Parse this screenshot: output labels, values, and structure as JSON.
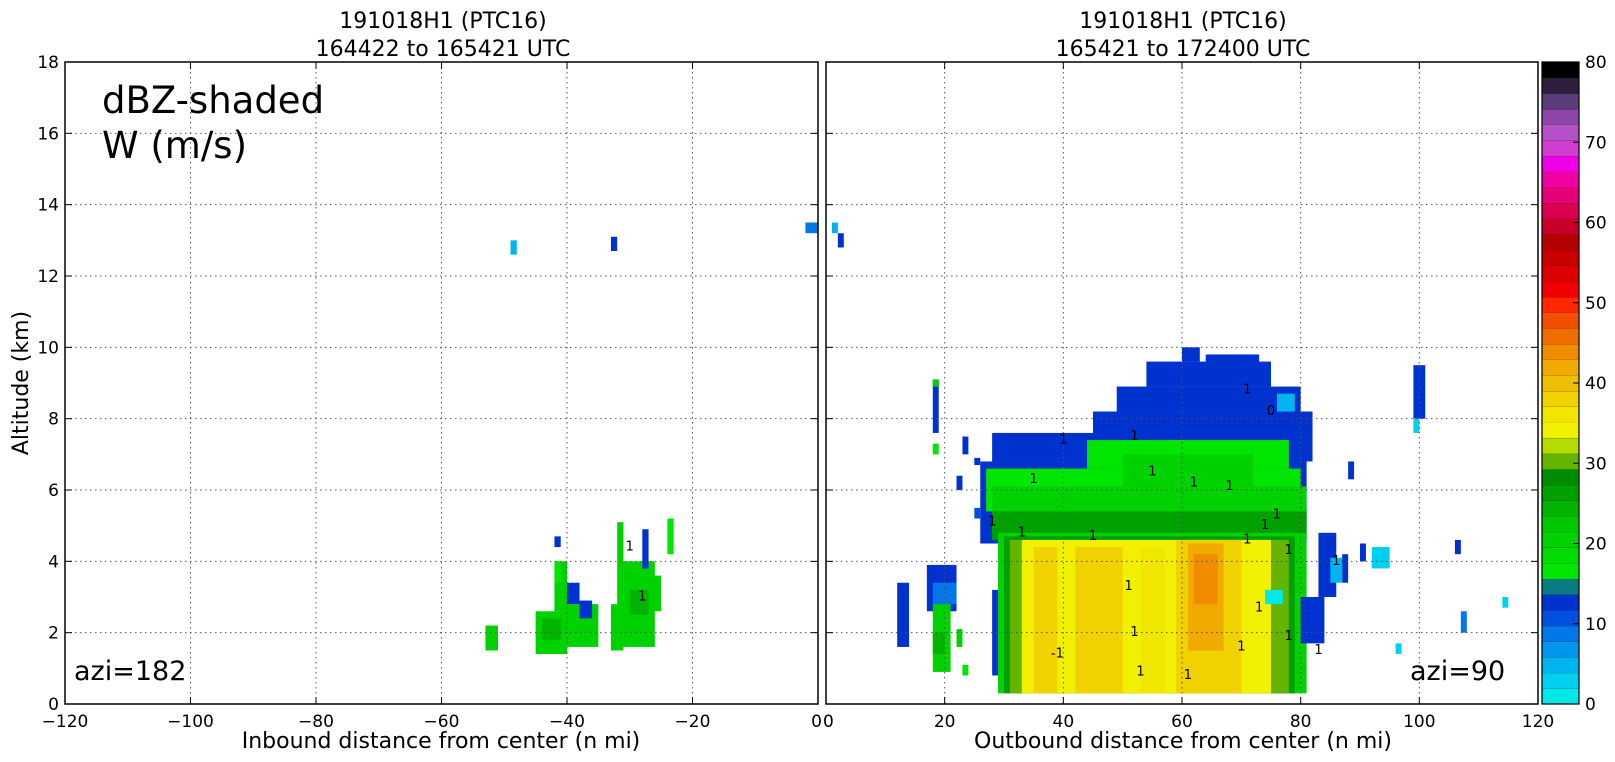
{
  "annotation": {
    "line1": "dBZ-shaded",
    "line2": "W (m/s)"
  },
  "colorbar": {
    "ticks": [
      "0",
      "10",
      "20",
      "30",
      "40",
      "50",
      "60",
      "70",
      "80"
    ],
    "colors": [
      "#00e8e8",
      "#00d0f0",
      "#00b4f0",
      "#0096ec",
      "#0078e8",
      "#0050e0",
      "#0032d0",
      "#0a7c82",
      "#00e600",
      "#00dc00",
      "#00d200",
      "#00c800",
      "#00b400",
      "#00a000",
      "#008c00",
      "#64b400",
      "#b4dc00",
      "#f0f000",
      "#f0e600",
      "#f0d200",
      "#f0be00",
      "#f0aa00",
      "#f08c00",
      "#f06e00",
      "#f05000",
      "#ff2800",
      "#f00000",
      "#dc0000",
      "#c80000",
      "#b40000",
      "#c80028",
      "#dc0050",
      "#e60078",
      "#f000a0",
      "#f000e6",
      "#d23cd2",
      "#b450c8",
      "#8c46aa",
      "#5a3c78",
      "#2d1e3c",
      "#000000"
    ]
  },
  "chart_data": [
    {
      "type": "heatmap",
      "title_line1": "191018H1 (PTC16)",
      "title_line2": "164422 to 165421 UTC",
      "xlabel": "Inbound distance from center (n mi)",
      "ylabel": "Altitude (km)",
      "xlim": [
        -120,
        0
      ],
      "ylim": [
        0,
        18
      ],
      "xticks": [
        -120,
        -100,
        -80,
        -60,
        -40,
        -20,
        0
      ],
      "yticks": [
        0,
        2,
        4,
        6,
        8,
        10,
        12,
        14,
        16,
        18
      ],
      "grid": true,
      "azimuth_label": "azi=182",
      "contour_labels": [
        {
          "text": "1",
          "x": -28,
          "y": 2.9
        },
        {
          "text": "1",
          "x": -30,
          "y": 4.3
        }
      ],
      "cells": [
        {
          "x0": -53,
          "x1": -51,
          "y0": 1.5,
          "y1": 2.2,
          "dbz": 21
        },
        {
          "x0": -45,
          "x1": -40,
          "y0": 1.4,
          "y1": 2.6,
          "dbz": 21
        },
        {
          "x0": -44,
          "x1": -40,
          "y0": 1.8,
          "y1": 2.4,
          "dbz": 25
        },
        {
          "x0": -41,
          "x1": -35,
          "y0": 1.6,
          "y1": 2.8,
          "dbz": 21
        },
        {
          "x0": -42,
          "x1": -40,
          "y0": 2.6,
          "y1": 4.0,
          "dbz": 21
        },
        {
          "x0": -42,
          "x1": -41,
          "y0": 3.4,
          "y1": 4.0,
          "dbz": 17
        },
        {
          "x0": -40,
          "x1": -38,
          "y0": 2.8,
          "y1": 3.4,
          "dbz": 12
        },
        {
          "x0": -38,
          "x1": -36,
          "y0": 2.4,
          "y1": 2.9,
          "dbz": 12
        },
        {
          "x0": -42,
          "x1": -41,
          "y0": 4.4,
          "y1": 4.7,
          "dbz": 13
        },
        {
          "x0": -33,
          "x1": -31,
          "y0": 1.5,
          "y1": 2.8,
          "dbz": 21
        },
        {
          "x0": -32,
          "x1": -26,
          "y0": 1.6,
          "y1": 4.0,
          "dbz": 21
        },
        {
          "x0": -32,
          "x1": -31,
          "y0": 4.0,
          "y1": 5.1,
          "dbz": 21
        },
        {
          "x0": -30,
          "x1": -27,
          "y0": 2.5,
          "y1": 3.2,
          "dbz": 25
        },
        {
          "x0": -27,
          "x1": -25,
          "y0": 2.6,
          "y1": 3.6,
          "dbz": 21
        },
        {
          "x0": -28,
          "x1": -27,
          "y0": 3.8,
          "y1": 4.9,
          "dbz": 12
        },
        {
          "x0": -24,
          "x1": -23,
          "y0": 4.2,
          "y1": 5.2,
          "dbz": 17
        },
        {
          "x0": -49,
          "x1": -48,
          "y0": 12.6,
          "y1": 13.0,
          "dbz": 5
        },
        {
          "x0": -33,
          "x1": -32,
          "y0": 12.7,
          "y1": 13.1,
          "dbz": 12
        },
        {
          "x0": -2,
          "x1": 0,
          "y0": 13.2,
          "y1": 13.5,
          "dbz": 8
        }
      ]
    },
    {
      "type": "heatmap",
      "title_line1": "191018H1 (PTC16)",
      "title_line2": "165421 to 172400 UTC",
      "xlabel": "Outbound distance from center (n mi)",
      "ylabel": "",
      "xlim": [
        0,
        120
      ],
      "ylim": [
        0,
        18
      ],
      "xticks": [
        0,
        20,
        40,
        60,
        80,
        100,
        120
      ],
      "yticks": [
        0,
        2,
        4,
        6,
        8,
        10,
        12,
        14,
        16,
        18
      ],
      "grid": true,
      "azimuth_label": "azi=90",
      "contour_labels": [
        {
          "text": "-1",
          "x": 39,
          "y": 1.3
        },
        {
          "text": "1",
          "x": 51,
          "y": 3.2
        },
        {
          "text": "1",
          "x": 52,
          "y": 1.9
        },
        {
          "text": "1",
          "x": 53,
          "y": 0.8
        },
        {
          "text": "1",
          "x": 61,
          "y": 0.7
        },
        {
          "text": "1",
          "x": 70,
          "y": 1.5
        },
        {
          "text": "1",
          "x": 73,
          "y": 2.6
        },
        {
          "text": "1",
          "x": 78,
          "y": 1.8
        },
        {
          "text": "1",
          "x": 83,
          "y": 1.4
        },
        {
          "text": "1",
          "x": 78,
          "y": 4.2
        },
        {
          "text": "1",
          "x": 35,
          "y": 6.2
        },
        {
          "text": "1",
          "x": 40,
          "y": 7.3
        },
        {
          "text": "1",
          "x": 52,
          "y": 7.4
        },
        {
          "text": "1",
          "x": 55,
          "y": 6.4
        },
        {
          "text": "1",
          "x": 62,
          "y": 6.1
        },
        {
          "text": "1",
          "x": 68,
          "y": 6.0
        },
        {
          "text": "1",
          "x": 71,
          "y": 8.7
        },
        {
          "text": "1",
          "x": 76,
          "y": 5.2
        },
        {
          "text": "0",
          "x": 75,
          "y": 8.1
        },
        {
          "text": "1",
          "x": 28,
          "y": 5.0
        },
        {
          "text": "1",
          "x": 33,
          "y": 4.7
        },
        {
          "text": "1",
          "x": 45,
          "y": 4.6
        },
        {
          "text": "1",
          "x": 71,
          "y": 4.5
        },
        {
          "text": "1",
          "x": 74,
          "y": 4.9
        },
        {
          "text": "1",
          "x": 86,
          "y": 3.9
        }
      ],
      "cells": [
        {
          "x0": 1,
          "x1": 2,
          "y0": 13.2,
          "y1": 13.5,
          "dbz": 5
        },
        {
          "x0": 2,
          "x1": 3,
          "y0": 12.8,
          "y1": 13.2,
          "dbz": 12
        },
        {
          "x0": 12,
          "x1": 14,
          "y0": 1.6,
          "y1": 3.4,
          "dbz": 12
        },
        {
          "x0": 18,
          "x1": 19,
          "y0": 7.6,
          "y1": 9.1,
          "dbz": 12
        },
        {
          "x0": 18,
          "x1": 19,
          "y0": 8.9,
          "y1": 9.1,
          "dbz": 21
        },
        {
          "x0": 18,
          "x1": 19,
          "y0": 7.0,
          "y1": 7.3,
          "dbz": 17
        },
        {
          "x0": 17,
          "x1": 22,
          "y0": 2.6,
          "y1": 3.9,
          "dbz": 12
        },
        {
          "x0": 18,
          "x1": 22,
          "y0": 2.8,
          "y1": 3.4,
          "dbz": 8
        },
        {
          "x0": 18,
          "x1": 21,
          "y0": 0.9,
          "y1": 2.8,
          "dbz": 21
        },
        {
          "x0": 18,
          "x1": 20,
          "y0": 1.4,
          "y1": 2.0,
          "dbz": 24
        },
        {
          "x0": 22,
          "x1": 23,
          "y0": 1.6,
          "y1": 2.1,
          "dbz": 21
        },
        {
          "x0": 23,
          "x1": 24,
          "y0": 0.8,
          "y1": 1.1,
          "dbz": 17
        },
        {
          "x0": 22,
          "x1": 23,
          "y0": 6.0,
          "y1": 6.4,
          "dbz": 12
        },
        {
          "x0": 23,
          "x1": 24,
          "y0": 7.0,
          "y1": 7.5,
          "dbz": 12
        },
        {
          "x0": 25,
          "x1": 26,
          "y0": 6.7,
          "y1": 6.9,
          "dbz": 12
        },
        {
          "x0": 25,
          "x1": 26,
          "y0": 5.2,
          "y1": 5.5,
          "dbz": 10
        },
        {
          "x0": 26,
          "x1": 81,
          "y0": 4.5,
          "y1": 6.8,
          "dbz": 12
        },
        {
          "x0": 28,
          "x1": 46,
          "y0": 6.8,
          "y1": 7.6,
          "dbz": 12
        },
        {
          "x0": 45,
          "x1": 82,
          "y0": 6.8,
          "y1": 8.2,
          "dbz": 12
        },
        {
          "x0": 49,
          "x1": 80,
          "y0": 8.2,
          "y1": 8.9,
          "dbz": 12
        },
        {
          "x0": 54,
          "x1": 75,
          "y0": 8.9,
          "y1": 9.6,
          "dbz": 12
        },
        {
          "x0": 60,
          "x1": 63,
          "y0": 9.6,
          "y1": 10.0,
          "dbz": 12
        },
        {
          "x0": 64,
          "x1": 73,
          "y0": 9.2,
          "y1": 9.8,
          "dbz": 12
        },
        {
          "x0": 76,
          "x1": 79,
          "y0": 8.2,
          "y1": 8.7,
          "dbz": 5
        },
        {
          "x0": 27,
          "x1": 80,
          "y0": 5.4,
          "y1": 6.6,
          "dbz": 17
        },
        {
          "x0": 44,
          "x1": 78,
          "y0": 6.6,
          "y1": 7.4,
          "dbz": 17
        },
        {
          "x0": 28,
          "x1": 81,
          "y0": 4.8,
          "y1": 6.1,
          "dbz": 21
        },
        {
          "x0": 50,
          "x1": 72,
          "y0": 6.1,
          "y1": 7.0,
          "dbz": 21
        },
        {
          "x0": 28,
          "x1": 81,
          "y0": 4.6,
          "y1": 5.4,
          "dbz": 27
        },
        {
          "x0": 28,
          "x1": 30,
          "y0": 0.8,
          "y1": 3.2,
          "dbz": 12
        },
        {
          "x0": 29,
          "x1": 81,
          "y0": 0.3,
          "y1": 4.8,
          "dbz": 21
        },
        {
          "x0": 30,
          "x1": 79,
          "y0": 0.3,
          "y1": 4.7,
          "dbz": 26
        },
        {
          "x0": 31,
          "x1": 78,
          "y0": 0.3,
          "y1": 4.6,
          "dbz": 31
        },
        {
          "x0": 33,
          "x1": 75,
          "y0": 0.3,
          "y1": 4.6,
          "dbz": 35
        },
        {
          "x0": 35,
          "x1": 39,
          "y0": 0.3,
          "y1": 4.4,
          "dbz": 38
        },
        {
          "x0": 42,
          "x1": 50,
          "y0": 0.3,
          "y1": 4.4,
          "dbz": 38
        },
        {
          "x0": 53,
          "x1": 57,
          "y0": 0.3,
          "y1": 4.4,
          "dbz": 37
        },
        {
          "x0": 59,
          "x1": 70,
          "y0": 0.3,
          "y1": 4.6,
          "dbz": 38
        },
        {
          "x0": 61,
          "x1": 67,
          "y0": 1.5,
          "y1": 4.5,
          "dbz": 42
        },
        {
          "x0": 62,
          "x1": 66,
          "y0": 2.8,
          "y1": 4.2,
          "dbz": 44
        },
        {
          "x0": 74,
          "x1": 77,
          "y0": 2.8,
          "y1": 3.2,
          "dbz": 0
        },
        {
          "x0": 80,
          "x1": 84,
          "y0": 1.7,
          "y1": 3.0,
          "dbz": 12
        },
        {
          "x0": 83,
          "x1": 86,
          "y0": 3.0,
          "y1": 4.8,
          "dbz": 12
        },
        {
          "x0": 85,
          "x1": 87,
          "y0": 3.4,
          "y1": 4.1,
          "dbz": 5
        },
        {
          "x0": 87,
          "x1": 88,
          "y0": 3.4,
          "y1": 4.2,
          "dbz": 12
        },
        {
          "x0": 88,
          "x1": 89,
          "y0": 6.3,
          "y1": 6.8,
          "dbz": 12
        },
        {
          "x0": 90,
          "x1": 91,
          "y0": 4.0,
          "y1": 4.5,
          "dbz": 12
        },
        {
          "x0": 92,
          "x1": 95,
          "y0": 3.8,
          "y1": 4.4,
          "dbz": 3
        },
        {
          "x0": 99,
          "x1": 101,
          "y0": 8.0,
          "y1": 9.5,
          "dbz": 12
        },
        {
          "x0": 99,
          "x1": 100,
          "y0": 7.6,
          "y1": 8.0,
          "dbz": 3
        },
        {
          "x0": 96,
          "x1": 97,
          "y0": 1.4,
          "y1": 1.7,
          "dbz": 3
        },
        {
          "x0": 106,
          "x1": 107,
          "y0": 4.2,
          "y1": 4.6,
          "dbz": 12
        },
        {
          "x0": 107,
          "x1": 108,
          "y0": 2.0,
          "y1": 2.6,
          "dbz": 8
        },
        {
          "x0": 114,
          "x1": 115,
          "y0": 2.7,
          "y1": 3.0,
          "dbz": 3
        }
      ]
    }
  ]
}
